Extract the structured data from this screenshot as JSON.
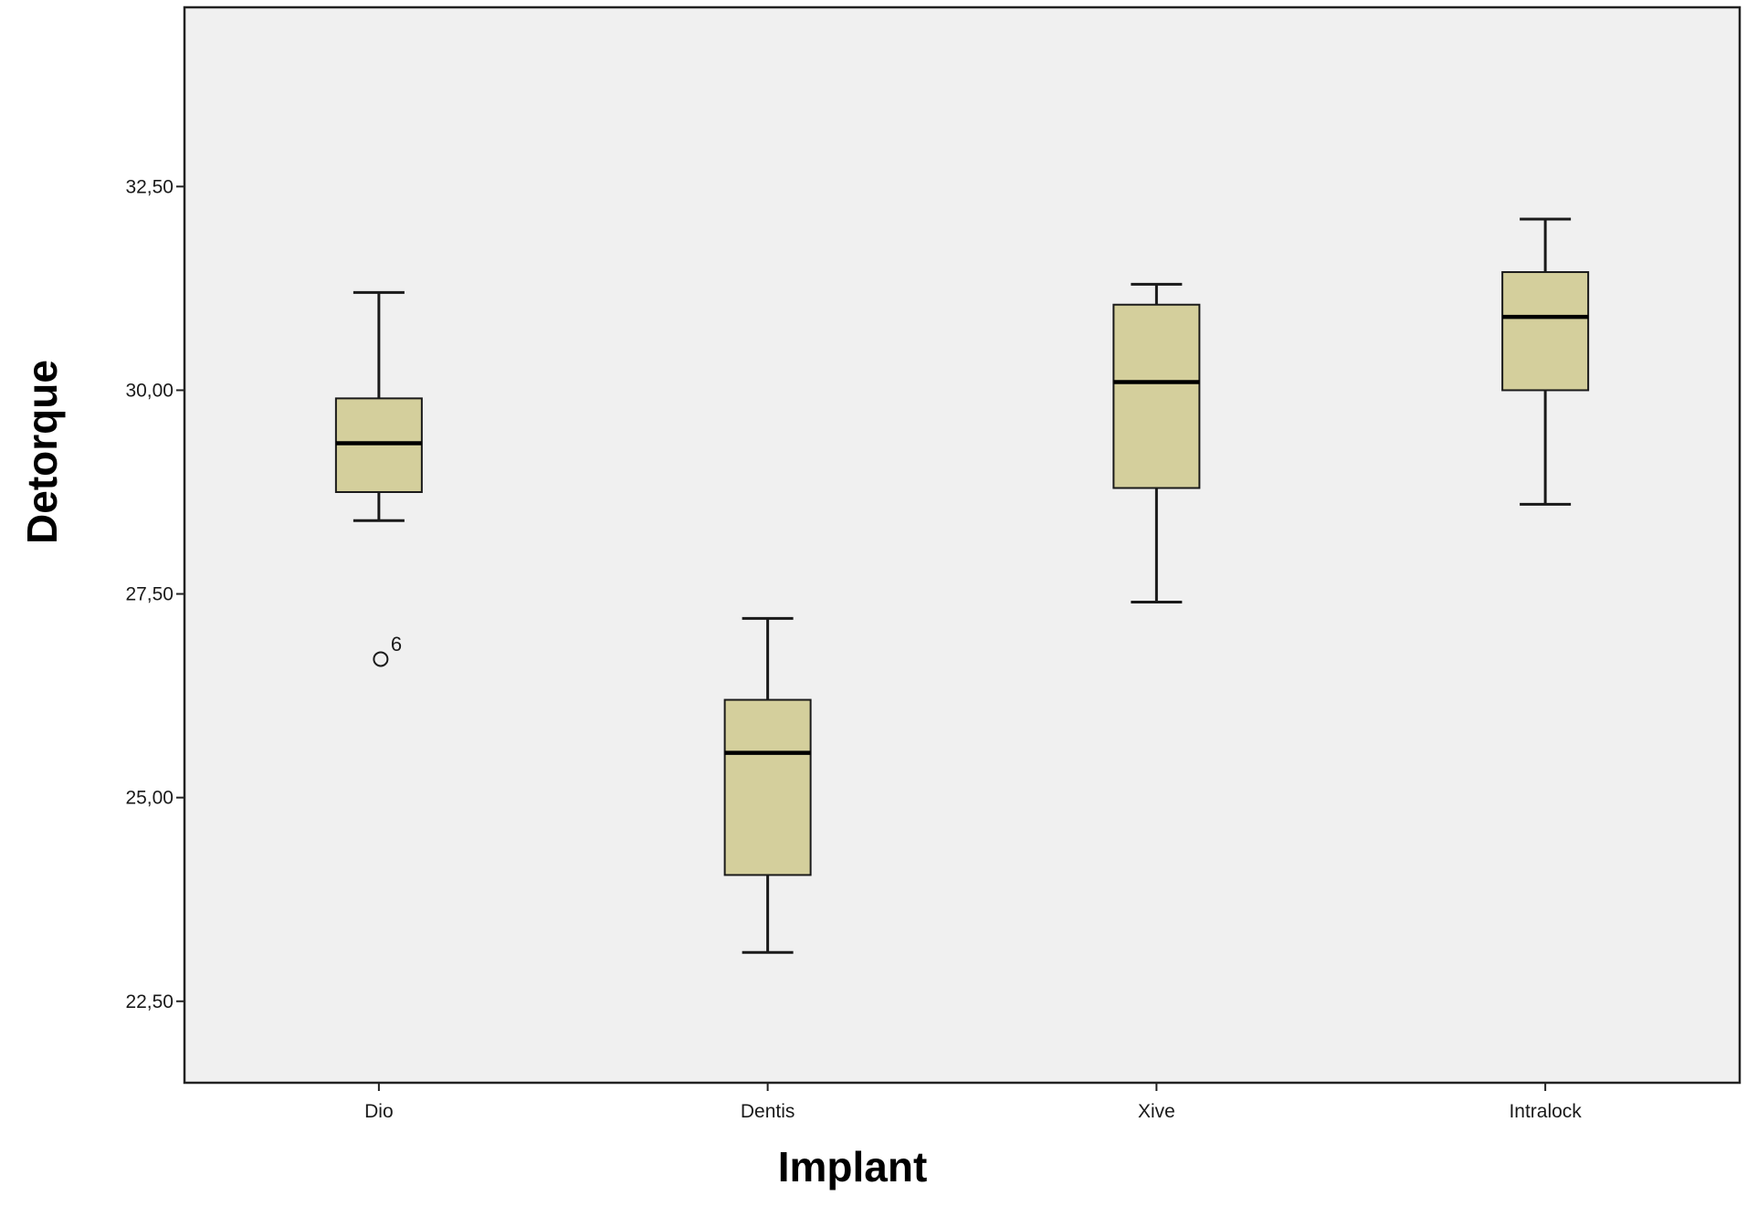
{
  "chart_data": {
    "type": "boxplot",
    "xlabel": "Implant",
    "ylabel": "Detorque",
    "ylim": [
      21.5,
      34.7
    ],
    "yticks": [
      22.5,
      25.0,
      27.5,
      30.0,
      32.5
    ],
    "ytick_labels": [
      "22,50",
      "25,00",
      "27,50",
      "30,00",
      "32,50"
    ],
    "grid": false,
    "categories": [
      "Dio",
      "Dentis",
      "Xive",
      "Intralock"
    ],
    "boxes": [
      {
        "category": "Dio",
        "whisker_low": 28.4,
        "q1": 28.75,
        "median": 29.35,
        "q3": 29.9,
        "whisker_high": 31.2,
        "outliers": [
          {
            "value": 26.7,
            "label": "6"
          }
        ]
      },
      {
        "category": "Dentis",
        "whisker_low": 23.1,
        "q1": 24.05,
        "median": 25.55,
        "q3": 26.2,
        "whisker_high": 27.2,
        "outliers": []
      },
      {
        "category": "Xive",
        "whisker_low": 27.4,
        "q1": 28.8,
        "median": 30.1,
        "q3": 31.05,
        "whisker_high": 31.3,
        "outliers": []
      },
      {
        "category": "Intralock",
        "whisker_low": 28.6,
        "q1": 30.0,
        "median": 30.9,
        "q3": 31.45,
        "whisker_high": 32.1,
        "outliers": []
      }
    ],
    "colors": {
      "plot_background": "#f0f0f0",
      "box_fill": "#d4cf9c",
      "line": "#1a1a1a",
      "frame": "#222222"
    }
  }
}
